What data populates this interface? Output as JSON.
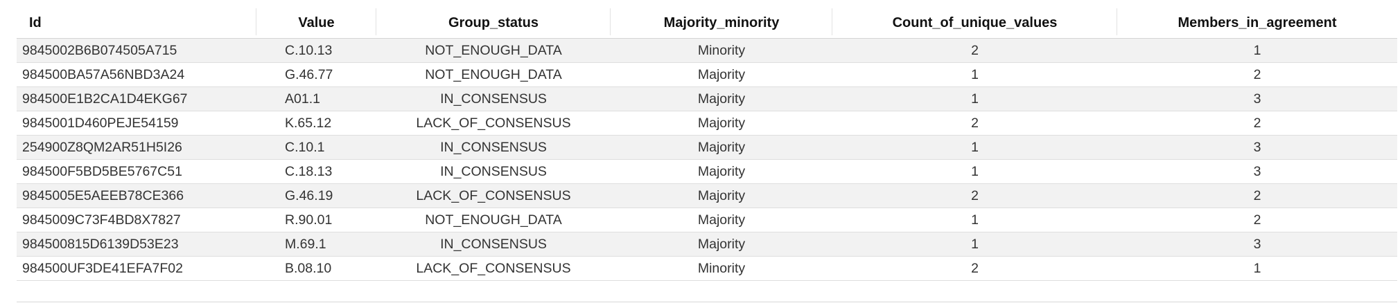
{
  "table": {
    "columns": [
      "Id",
      "Value",
      "Group_status",
      "Majority_minority",
      "Count_of_unique_values",
      "Members_in_agreement"
    ],
    "rows": [
      [
        "9845002B6B074505A715",
        "C.10.13",
        "NOT_ENOUGH_DATA",
        "Minority",
        "2",
        "1"
      ],
      [
        "984500BA57A56NBD3A24",
        "G.46.77",
        "NOT_ENOUGH_DATA",
        "Majority",
        "1",
        "2"
      ],
      [
        "984500E1B2CA1D4EKG67",
        "A01.1",
        "IN_CONSENSUS",
        "Majority",
        "1",
        "3"
      ],
      [
        "9845001D460PEJE54159",
        "K.65.12",
        "LACK_OF_CONSENSUS",
        "Majority",
        "2",
        "2"
      ],
      [
        "254900Z8QM2AR51H5I26",
        "C.10.1",
        "IN_CONSENSUS",
        "Majority",
        "1",
        "3"
      ],
      [
        "984500F5BD5BE5767C51",
        "C.18.13",
        "IN_CONSENSUS",
        "Majority",
        "1",
        "3"
      ],
      [
        "9845005E5AEEB78CE366",
        "G.46.19",
        "LACK_OF_CONSENSUS",
        "Majority",
        "2",
        "2"
      ],
      [
        "9845009C73F4BD8X7827",
        "R.90.01",
        "NOT_ENOUGH_DATA",
        "Majority",
        "1",
        "2"
      ],
      [
        "984500815D6139D53E23",
        "M.69.1",
        "IN_CONSENSUS",
        "Majority",
        "1",
        "3"
      ],
      [
        "984500UF3DE41EFA7F02",
        "B.08.10",
        "LACK_OF_CONSENSUS",
        "Minority",
        "2",
        "1"
      ]
    ]
  }
}
